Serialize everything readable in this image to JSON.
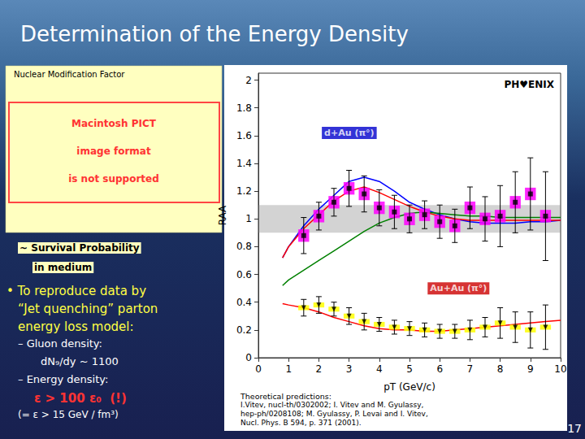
{
  "chart_data": {
    "type": "line",
    "title": "Determination of the Energy Density",
    "xlabel": "pT (GeV/c)",
    "ylabel": "RAA",
    "xlim": [
      0,
      10
    ],
    "ylim": [
      0,
      2.05
    ],
    "xticks": [
      0,
      1,
      2,
      3,
      4,
      5,
      6,
      7,
      8,
      9,
      10
    ],
    "yticks": [
      0,
      0.2,
      0.4,
      0.6,
      0.8,
      1,
      1.2,
      1.4,
      1.6,
      1.8,
      2
    ],
    "grid": false,
    "band_y": [
      0.9,
      1.1
    ],
    "series": [
      {
        "type": "line",
        "color": "blue",
        "x": [
          0.8,
          1.0,
          1.5,
          2.0,
          2.5,
          3.0,
          3.5,
          4.0,
          4.5,
          5.0,
          5.5,
          6.0,
          6.5,
          7.0,
          7.5,
          8.0,
          8.5,
          9.0,
          9.5,
          10.0
        ],
        "values": [
          0.72,
          0.8,
          0.95,
          1.07,
          1.17,
          1.27,
          1.3,
          1.27,
          1.2,
          1.12,
          1.07,
          1.03,
          1.0,
          0.98,
          0.97,
          0.97,
          0.97,
          0.98,
          0.98,
          0.99
        ]
      },
      {
        "type": "line",
        "color": "red",
        "x": [
          0.8,
          1.0,
          1.5,
          2.0,
          2.5,
          3.0,
          3.5,
          4.0,
          4.5,
          5.0,
          5.5,
          6.0,
          6.5,
          7.0,
          7.5,
          8.0,
          8.5,
          9.0,
          9.5,
          10.0
        ],
        "values": [
          0.72,
          0.8,
          0.93,
          1.03,
          1.13,
          1.2,
          1.23,
          1.19,
          1.14,
          1.09,
          1.05,
          1.02,
          1.0,
          0.99,
          0.99,
          0.99,
          0.99,
          0.99,
          0.99,
          0.99
        ]
      },
      {
        "type": "line",
        "color": "green",
        "x": [
          0.8,
          1.0,
          1.5,
          2.0,
          2.5,
          3.0,
          3.5,
          4.0,
          4.5,
          5.0,
          5.5,
          6.0,
          6.5,
          7.0,
          7.5,
          8.0,
          8.5,
          9.0,
          9.5,
          10.0
        ],
        "values": [
          0.52,
          0.56,
          0.63,
          0.7,
          0.77,
          0.84,
          0.91,
          0.97,
          1.01,
          1.04,
          1.05,
          1.04,
          1.03,
          1.02,
          1.02,
          1.01,
          1.01,
          1.01,
          1.01,
          1.01
        ]
      },
      {
        "type": "line",
        "color": "red",
        "x": [
          0.8,
          1.0,
          1.5,
          2.0,
          2.5,
          3.0,
          3.5,
          4.0,
          4.5,
          5.0,
          5.5,
          6.0,
          6.5,
          7.0,
          7.5,
          8.0,
          8.5,
          9.0,
          9.5,
          10.0
        ],
        "values": [
          0.39,
          0.38,
          0.36,
          0.33,
          0.29,
          0.26,
          0.23,
          0.21,
          0.2,
          0.2,
          0.19,
          0.19,
          0.2,
          0.21,
          0.22,
          0.23,
          0.24,
          0.25,
          0.26,
          0.27
        ]
      },
      {
        "type": "scatter",
        "marker": "square",
        "color": "#FF00FF",
        "x": [
          1.5,
          2.0,
          2.5,
          3.0,
          3.5,
          4.0,
          4.5,
          5.0,
          5.5,
          6.0,
          6.5,
          7.0,
          7.5,
          8.0,
          8.5,
          9.0,
          9.5
        ],
        "values": [
          0.88,
          1.02,
          1.12,
          1.22,
          1.18,
          1.08,
          1.05,
          1.0,
          1.03,
          0.98,
          0.95,
          1.08,
          1.0,
          1.02,
          1.12,
          1.18,
          1.02
        ],
        "yerr": [
          0.13,
          0.1,
          0.1,
          0.13,
          0.13,
          0.13,
          0.12,
          0.1,
          0.1,
          0.12,
          0.12,
          0.15,
          0.16,
          0.22,
          0.22,
          0.26,
          0.32
        ]
      },
      {
        "type": "scatter",
        "marker": "triangle-down",
        "color": "#FFFF00",
        "x": [
          1.5,
          2.0,
          2.5,
          3.0,
          3.5,
          4.0,
          4.5,
          5.0,
          5.5,
          6.0,
          6.5,
          7.0,
          7.5,
          8.0,
          8.5,
          9.0,
          9.5
        ],
        "values": [
          0.36,
          0.38,
          0.35,
          0.3,
          0.26,
          0.24,
          0.22,
          0.21,
          0.2,
          0.19,
          0.19,
          0.2,
          0.22,
          0.25,
          0.22,
          0.2,
          0.22
        ],
        "yerr": [
          0.06,
          0.06,
          0.05,
          0.06,
          0.06,
          0.05,
          0.05,
          0.05,
          0.05,
          0.05,
          0.05,
          0.07,
          0.07,
          0.11,
          0.11,
          0.13,
          0.16
        ]
      }
    ],
    "annotations": [
      {
        "text": "d+Au (π°)",
        "x": 2.1,
        "y": 1.62,
        "color": "#0000CC"
      },
      {
        "text": "Au+Au (π°)",
        "x": 5.6,
        "y": 0.5,
        "color": "#CC0000"
      }
    ],
    "logo": "PH♥ENIX",
    "panel": {
      "title": "Nuclear Modification Factor",
      "error_lines": [
        "Macintosh PICT",
        "image format",
        "is not supported"
      ]
    },
    "caption": [
      "~ Survival Probability",
      "in medium"
    ],
    "bullets": [
      {
        "text": "• To reproduce data by",
        "color": "#FFFF44",
        "bold": false
      },
      {
        "text": "“Jet quenching” parton",
        "color": "#FFFF44",
        "bold": false
      },
      {
        "text": "energy loss model:",
        "color": "#FFFF44",
        "bold": false
      },
      {
        "text": "– Gluon density:",
        "color": "#FFFFFF",
        "bold": false
      },
      {
        "text": "dN₉/dy ~ 1100",
        "color": "#FFFFFF",
        "bold": false
      },
      {
        "text": "– Energy density:",
        "color": "#FFFFFF",
        "bold": false
      },
      {
        "text": "ε > 100 ε₀  (!)",
        "color": "#FF3333",
        "bold": true
      },
      {
        "text": "(= ε > 15 GeV / fm³)",
        "color": "#FFFFFF",
        "bold": false
      }
    ],
    "references": [
      "Theoretical predictions:",
      "I.Vitev, nucl-th/0302002; I. Vitev and M. Gyulassy,",
      "hep-ph/0208108; M. Gyulassy, P. Levai and I. Vitev,",
      "Nucl. Phys. B 594, p. 371 (2001)."
    ],
    "page_number": "17"
  }
}
